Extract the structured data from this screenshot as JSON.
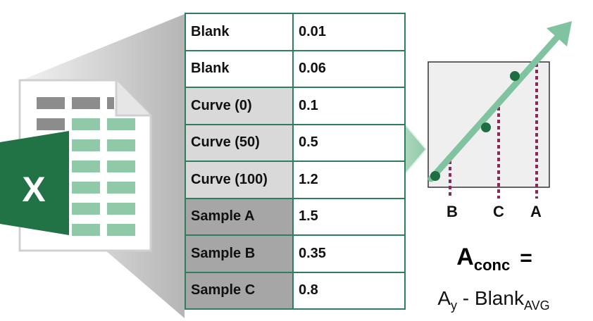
{
  "table": {
    "rows": [
      {
        "label": "Blank",
        "value": "0.01",
        "kind": "blank"
      },
      {
        "label": "Blank",
        "value": "0.06",
        "kind": "blank"
      },
      {
        "label": "Curve (0)",
        "value": "0.1",
        "kind": "curve"
      },
      {
        "label": "Curve (50)",
        "value": "0.5",
        "kind": "curve"
      },
      {
        "label": "Curve (100)",
        "value": "1.2",
        "kind": "curve"
      },
      {
        "label": "Sample A",
        "value": "1.5",
        "kind": "sample"
      },
      {
        "label": "Sample B",
        "value": "0.35",
        "kind": "sample"
      },
      {
        "label": "Sample C",
        "value": "0.8",
        "kind": "sample"
      }
    ]
  },
  "excel_icon": {
    "letter": "X"
  },
  "graph": {
    "markers": [
      "B",
      "C",
      "A"
    ]
  },
  "formula": {
    "main": "A",
    "main_sub": "conc",
    "equals": "=",
    "rhs_a": "A",
    "rhs_a_sub": "y",
    "rhs_mid": " - Blank",
    "rhs_sub": "AVG"
  },
  "colors": {
    "excel_green": "#217346",
    "table_border": "#2e7d5c",
    "trend_line": "#7fc3a0",
    "dot": "#1f6e43",
    "dashed": "#8b2a5a",
    "curve_fill": "#d9d9d9",
    "sample_fill": "#a6a6a6"
  }
}
